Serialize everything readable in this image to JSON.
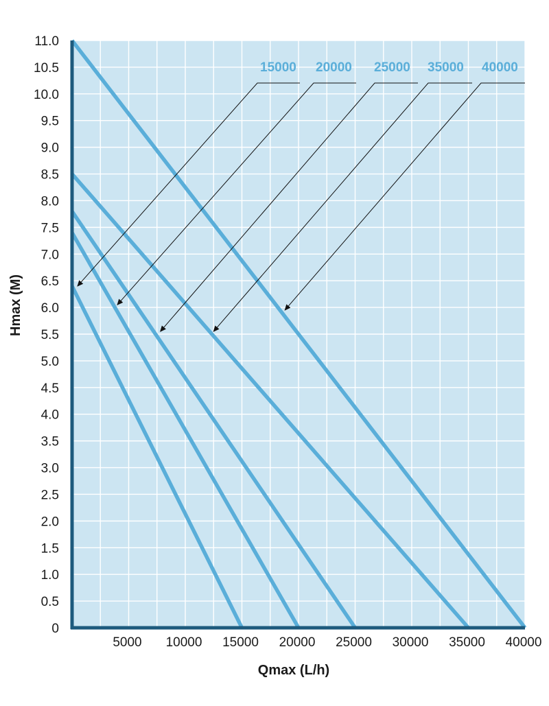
{
  "chart_data": {
    "type": "line",
    "title": "",
    "xlabel": "Qmax (L/h)",
    "ylabel": "Hmax (M)",
    "xlim": [
      0,
      40000
    ],
    "ylim": [
      0,
      11
    ],
    "grid": true,
    "x_ticks": [
      5000,
      10000,
      15000,
      20000,
      25000,
      30000,
      35000,
      40000
    ],
    "x_tick_labels": [
      "5000",
      "10000",
      "15000",
      "20000",
      "25000",
      "30000",
      "35000",
      "40000"
    ],
    "x_grid_step": 2500,
    "y_ticks": [
      0,
      0.5,
      1,
      1.5,
      2,
      2.5,
      3,
      3.5,
      4,
      4.5,
      5,
      5.5,
      6,
      6.5,
      7,
      7.5,
      8,
      8.5,
      9,
      9.5,
      10,
      10.5,
      11
    ],
    "y_tick_labels": [
      "0",
      "0.5",
      "1.0",
      "1.5",
      "2.0",
      "2.5",
      "3.0",
      "3.5",
      "4.0",
      "4.5",
      "5.0",
      "5.5",
      "6.0",
      "6.5",
      "7.0",
      "7.5",
      "8.0",
      "8.5",
      "9.0",
      "9.5",
      "10.0",
      "10.5",
      "11.0"
    ],
    "series": [
      {
        "name": "15000",
        "x": [
          0,
          15000
        ],
        "y": [
          6.4,
          0
        ],
        "arrow_target": [
          0,
          6.4
        ]
      },
      {
        "name": "20000",
        "x": [
          0,
          20000
        ],
        "y": [
          7.4,
          0
        ],
        "arrow_target": [
          4000,
          6.05
        ]
      },
      {
        "name": "25000",
        "x": [
          0,
          25000
        ],
        "y": [
          7.8,
          0
        ],
        "arrow_target": [
          7800,
          5.55
        ]
      },
      {
        "name": "35000",
        "x": [
          0,
          35000
        ],
        "y": [
          8.5,
          0
        ],
        "arrow_target": [
          12500,
          5.55
        ]
      },
      {
        "name": "40000",
        "x": [
          0,
          40000
        ],
        "y": [
          11.0,
          0
        ],
        "arrow_target": [
          18800,
          5.95
        ]
      }
    ],
    "colors": {
      "plot_background": "#cce5f2",
      "grid": "#ffffff",
      "axis": "#1d5a7d",
      "series_line": "#5aaed9",
      "legend_text": "#5aaed9",
      "arrow": "#111111",
      "tick_text": "#1a1a1a"
    }
  }
}
